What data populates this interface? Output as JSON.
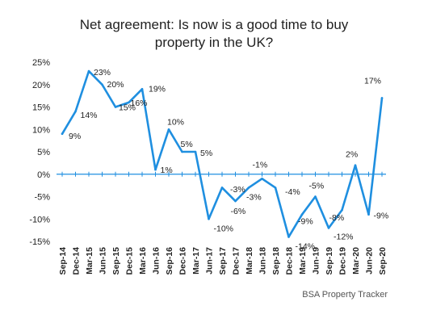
{
  "chart_data": {
    "type": "line",
    "title_lines": [
      "Net agreement: Is now is a good time to buy",
      "property in the UK?"
    ],
    "source": "BSA Property Tracker",
    "ylim": [
      -15,
      25
    ],
    "yticks": [
      25,
      20,
      15,
      10,
      5,
      0,
      -5,
      -10,
      -15
    ],
    "ytick_labels": [
      "25%",
      "20%",
      "15%",
      "10%",
      "5%",
      "0%",
      "-5%",
      "-10%",
      "-15%"
    ],
    "x_tick_labels": [
      "Sep-14",
      "Dec-14",
      "Mar-15",
      "Jun-15",
      "Sep-15",
      "Dec-15",
      "Mar-16",
      "Jun-16",
      "Sep-16",
      "Dec-16",
      "Mar-17",
      "Jun-17",
      "Sep-17",
      "Dec-17",
      "Mar-18",
      "Jun-18",
      "Sep-18",
      "Dec-18",
      "Mar-19",
      "Jun-19",
      "Sep-19",
      "Dec-19",
      "Mar-20",
      "Jun-20",
      "Sep-20"
    ],
    "series_color": "#1F8FE0",
    "points": [
      {
        "v": 9,
        "label": "9%"
      },
      {
        "v": 14,
        "label": "14%"
      },
      {
        "v": 23,
        "label": "23%"
      },
      {
        "v": 20,
        "label": "20%"
      },
      {
        "v": 15,
        "label": "15%"
      },
      {
        "v": 16,
        "label": "16%"
      },
      {
        "v": 19,
        "label": "19%"
      },
      {
        "v": 1,
        "label": "1%"
      },
      {
        "v": 10,
        "label": "10%"
      },
      {
        "v": 5,
        "label": "5%"
      },
      {
        "v": 5,
        "label": "5%"
      },
      {
        "v": -10,
        "label": "-10%"
      },
      {
        "v": -3,
        "label": ""
      },
      {
        "v": -6,
        "label": "-6%"
      },
      {
        "v": -3,
        "label": "-3%"
      },
      {
        "v": -1,
        "label": "-1%"
      },
      {
        "v": -3,
        "label": ""
      },
      {
        "v": -14,
        "label": "-14%"
      },
      {
        "v": -9,
        "label": "-9%"
      },
      {
        "v": -5,
        "label": "-5%"
      },
      {
        "v": -12,
        "label": "-12%"
      },
      {
        "v": -8,
        "label": "-8%"
      },
      {
        "v": 2,
        "label": "2%"
      },
      {
        "v": -9,
        "label": "-9%"
      },
      {
        "v": 17,
        "label": "17%"
      }
    ],
    "extra_labels": [
      "-3%",
      "-4%"
    ]
  }
}
